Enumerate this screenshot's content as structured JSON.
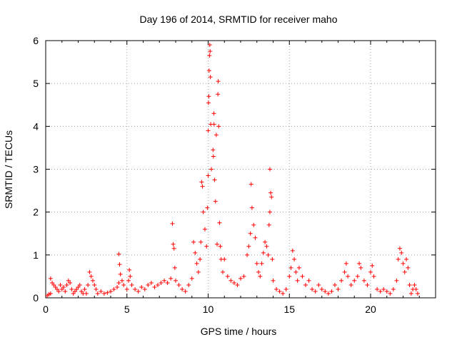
{
  "chart_data": {
    "type": "scatter",
    "title": "Day 196 of 2014, SRMTID for receiver maho",
    "xlabel": "GPS time / hours",
    "ylabel": "SRMTID / TECUs",
    "xlim": [
      0,
      24
    ],
    "ylim": [
      0,
      6
    ],
    "xticks": [
      0,
      5,
      10,
      15,
      20
    ],
    "yticks": [
      0,
      1,
      2,
      3,
      4,
      5,
      6
    ],
    "grid": true,
    "marker": "+",
    "color": "#ff0000",
    "series": [
      {
        "name": "SRMTID",
        "points": [
          [
            0.1,
            0.05
          ],
          [
            0.2,
            0.08
          ],
          [
            0.3,
            0.1
          ],
          [
            0.3,
            0.45
          ],
          [
            0.4,
            0.35
          ],
          [
            0.5,
            0.3
          ],
          [
            0.6,
            0.25
          ],
          [
            0.7,
            0.2
          ],
          [
            0.8,
            0.15
          ],
          [
            0.9,
            0.3
          ],
          [
            1.0,
            0.2
          ],
          [
            1.1,
            0.25
          ],
          [
            1.2,
            0.15
          ],
          [
            1.3,
            0.3
          ],
          [
            1.4,
            0.4
          ],
          [
            1.5,
            0.35
          ],
          [
            1.6,
            0.2
          ],
          [
            1.7,
            0.1
          ],
          [
            1.8,
            0.15
          ],
          [
            1.9,
            0.2
          ],
          [
            2.0,
            0.25
          ],
          [
            2.1,
            0.3
          ],
          [
            2.2,
            0.15
          ],
          [
            2.3,
            0.1
          ],
          [
            2.4,
            0.2
          ],
          [
            2.5,
            0.1
          ],
          [
            2.6,
            0.3
          ],
          [
            2.7,
            0.6
          ],
          [
            2.8,
            0.5
          ],
          [
            2.9,
            0.4
          ],
          [
            3.0,
            0.3
          ],
          [
            3.1,
            0.2
          ],
          [
            3.2,
            0.1
          ],
          [
            3.4,
            0.15
          ],
          [
            3.6,
            0.1
          ],
          [
            3.8,
            0.12
          ],
          [
            4.0,
            0.15
          ],
          [
            4.2,
            0.2
          ],
          [
            4.4,
            0.25
          ],
          [
            4.5,
            0.35
          ],
          [
            4.5,
            1.02
          ],
          [
            4.55,
            0.78
          ],
          [
            4.6,
            0.55
          ],
          [
            4.7,
            0.4
          ],
          [
            4.8,
            0.3
          ],
          [
            5.0,
            0.2
          ],
          [
            5.1,
            0.4
          ],
          [
            5.15,
            0.65
          ],
          [
            5.2,
            0.5
          ],
          [
            5.3,
            0.3
          ],
          [
            5.5,
            0.2
          ],
          [
            5.7,
            0.15
          ],
          [
            5.9,
            0.25
          ],
          [
            6.1,
            0.2
          ],
          [
            6.3,
            0.3
          ],
          [
            6.5,
            0.35
          ],
          [
            6.7,
            0.25
          ],
          [
            6.9,
            0.3
          ],
          [
            7.1,
            0.35
          ],
          [
            7.3,
            0.4
          ],
          [
            7.5,
            0.35
          ],
          [
            7.7,
            0.45
          ],
          [
            7.8,
            1.73
          ],
          [
            7.85,
            1.25
          ],
          [
            7.9,
            1.15
          ],
          [
            7.95,
            0.7
          ],
          [
            8.0,
            0.4
          ],
          [
            8.2,
            0.3
          ],
          [
            8.4,
            0.2
          ],
          [
            8.6,
            0.15
          ],
          [
            8.8,
            0.3
          ],
          [
            9.0,
            0.45
          ],
          [
            9.1,
            1.3
          ],
          [
            9.2,
            1.05
          ],
          [
            9.3,
            0.8
          ],
          [
            9.4,
            0.6
          ],
          [
            9.5,
            0.9
          ],
          [
            9.55,
            1.3
          ],
          [
            9.6,
            2.7
          ],
          [
            9.65,
            2.6
          ],
          [
            9.7,
            2.0
          ],
          [
            9.8,
            1.6
          ],
          [
            9.9,
            1.2
          ],
          [
            9.95,
            2.1
          ],
          [
            10.0,
            2.85
          ],
          [
            10.0,
            3.9
          ],
          [
            10.02,
            4.55
          ],
          [
            10.04,
            4.7
          ],
          [
            10.06,
            5.3
          ],
          [
            10.08,
            5.65
          ],
          [
            10.1,
            5.9
          ],
          [
            10.12,
            5.75
          ],
          [
            10.14,
            5.15
          ],
          [
            10.16,
            4.05
          ],
          [
            10.2,
            3.0
          ],
          [
            10.3,
            3.45
          ],
          [
            10.32,
            3.3
          ],
          [
            10.35,
            4.3
          ],
          [
            10.36,
            4.05
          ],
          [
            10.4,
            2.75
          ],
          [
            10.45,
            2.25
          ],
          [
            10.5,
            3.8
          ],
          [
            10.55,
            1.25
          ],
          [
            10.6,
            4.75
          ],
          [
            10.62,
            5.05
          ],
          [
            10.65,
            4.0
          ],
          [
            10.7,
            1.75
          ],
          [
            10.75,
            1.2
          ],
          [
            10.8,
            0.9
          ],
          [
            10.9,
            0.6
          ],
          [
            11.0,
            0.9
          ],
          [
            11.2,
            0.5
          ],
          [
            11.4,
            0.4
          ],
          [
            11.6,
            0.35
          ],
          [
            11.8,
            0.3
          ],
          [
            12.0,
            0.45
          ],
          [
            12.2,
            0.5
          ],
          [
            12.4,
            1.0
          ],
          [
            12.5,
            1.2
          ],
          [
            12.6,
            1.5
          ],
          [
            12.65,
            2.65
          ],
          [
            12.7,
            2.1
          ],
          [
            12.8,
            1.7
          ],
          [
            12.9,
            1.4
          ],
          [
            13.0,
            0.8
          ],
          [
            13.1,
            0.6
          ],
          [
            13.2,
            0.5
          ],
          [
            13.3,
            0.8
          ],
          [
            13.4,
            1.05
          ],
          [
            13.5,
            1.3
          ],
          [
            13.6,
            1.2
          ],
          [
            13.7,
            1.0
          ],
          [
            13.75,
            1.7
          ],
          [
            13.8,
            2.0
          ],
          [
            13.8,
            3.0
          ],
          [
            13.85,
            2.45
          ],
          [
            13.9,
            2.35
          ],
          [
            13.95,
            0.9
          ],
          [
            14.0,
            0.4
          ],
          [
            14.2,
            0.2
          ],
          [
            14.4,
            0.15
          ],
          [
            14.6,
            0.1
          ],
          [
            14.8,
            0.2
          ],
          [
            15.0,
            0.5
          ],
          [
            15.1,
            0.7
          ],
          [
            15.2,
            1.1
          ],
          [
            15.3,
            0.9
          ],
          [
            15.4,
            0.6
          ],
          [
            15.5,
            0.4
          ],
          [
            15.6,
            0.7
          ],
          [
            15.8,
            0.5
          ],
          [
            16.0,
            0.3
          ],
          [
            16.2,
            0.4
          ],
          [
            16.4,
            0.2
          ],
          [
            16.6,
            0.15
          ],
          [
            16.8,
            0.3
          ],
          [
            17.0,
            0.2
          ],
          [
            17.2,
            0.15
          ],
          [
            17.4,
            0.1
          ],
          [
            17.6,
            0.15
          ],
          [
            17.8,
            0.3
          ],
          [
            18.0,
            0.2
          ],
          [
            18.2,
            0.4
          ],
          [
            18.4,
            0.6
          ],
          [
            18.5,
            0.8
          ],
          [
            18.6,
            0.5
          ],
          [
            18.8,
            0.3
          ],
          [
            19.0,
            0.4
          ],
          [
            19.2,
            0.5
          ],
          [
            19.3,
            0.8
          ],
          [
            19.4,
            0.7
          ],
          [
            19.6,
            0.4
          ],
          [
            19.8,
            0.3
          ],
          [
            20.0,
            0.6
          ],
          [
            20.1,
            0.75
          ],
          [
            20.2,
            0.5
          ],
          [
            20.4,
            0.2
          ],
          [
            20.6,
            0.15
          ],
          [
            20.8,
            0.2
          ],
          [
            21.0,
            0.15
          ],
          [
            21.2,
            0.1
          ],
          [
            21.4,
            0.2
          ],
          [
            21.6,
            0.4
          ],
          [
            21.7,
            0.9
          ],
          [
            21.8,
            1.15
          ],
          [
            21.9,
            1.05
          ],
          [
            22.0,
            0.8
          ],
          [
            22.1,
            0.6
          ],
          [
            22.2,
            0.9
          ],
          [
            22.3,
            0.7
          ],
          [
            22.4,
            0.3
          ],
          [
            22.5,
            0.1
          ],
          [
            22.6,
            0.2
          ],
          [
            22.7,
            0.3
          ],
          [
            22.8,
            0.2
          ],
          [
            22.9,
            0.1
          ]
        ]
      }
    ]
  }
}
